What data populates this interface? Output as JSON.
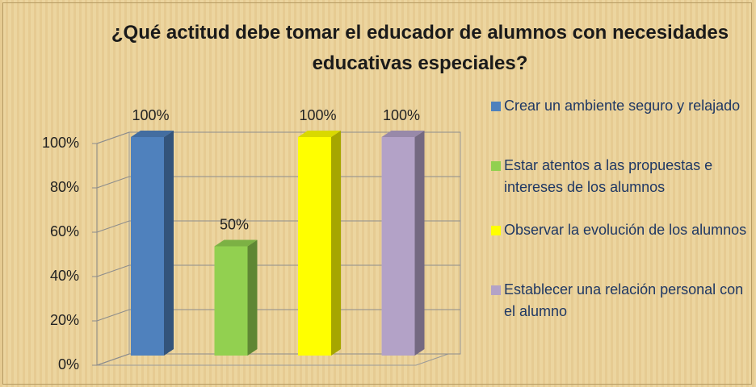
{
  "chart_data": {
    "type": "bar",
    "title": "¿Qué actitud debe tomar el educador de alumnos con necesidades educativas especiales?",
    "series": [
      {
        "name": "Crear un ambiente seguro y relajado",
        "color": "#4f81bd",
        "values": [
          100
        ],
        "value_labels": [
          "100%"
        ]
      },
      {
        "name": "Estar atentos a las propuestas e intereses de los alumnos",
        "color": "#92d050",
        "values": [
          50
        ],
        "value_labels": [
          "50%"
        ]
      },
      {
        "name": "Observar la evolución de los alumnos",
        "color": "#ffff00",
        "values": [
          100
        ],
        "value_labels": [
          "100%"
        ]
      },
      {
        "name": "Establecer una relación personal con el alumno",
        "color": "#b3a2c7",
        "values": [
          100
        ],
        "value_labels": [
          "100%"
        ]
      }
    ],
    "ylim": [
      0,
      100
    ],
    "yticks": [
      {
        "value": 0,
        "label": "0%"
      },
      {
        "value": 20,
        "label": "20%"
      },
      {
        "value": 40,
        "label": "40%"
      },
      {
        "value": 60,
        "label": "60%"
      },
      {
        "value": 80,
        "label": "80%"
      },
      {
        "value": 100,
        "label": "100%"
      }
    ],
    "grid": true,
    "legend": "right"
  }
}
